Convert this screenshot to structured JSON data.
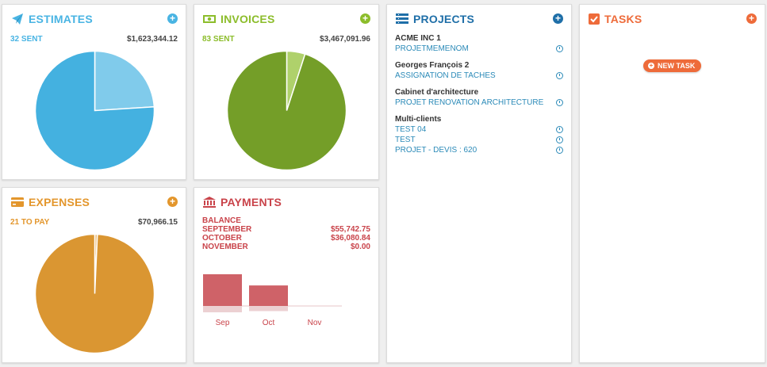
{
  "estimates": {
    "title": "ESTIMATES",
    "count_label": "32 SENT",
    "total": "$1,623,344.12",
    "color": "#49b4e3",
    "pie": [
      0.76,
      0.24
    ]
  },
  "invoices": {
    "title": "INVOICES",
    "count_label": "83 SENT",
    "total": "$3,467,091.96",
    "color": "#8cbd2b",
    "pie": [
      0.95,
      0.05
    ]
  },
  "expenses": {
    "title": "EXPENSES",
    "count_label": "21 TO PAY",
    "total": "$70,966.15",
    "color": "#e3962c",
    "pie": [
      0.993,
      0.007
    ]
  },
  "projects": {
    "title": "PROJECTS",
    "groups": [
      {
        "client": "ACME INC 1",
        "items": [
          "PROJETMEMENOM"
        ]
      },
      {
        "client": "Georges François 2",
        "items": [
          "ASSIGNATION DE TACHES"
        ]
      },
      {
        "client": "Cabinet d'architecture",
        "items": [
          "PROJET RENOVATION ARCHITECTURE"
        ]
      },
      {
        "client": "Multi-clients",
        "items": [
          "TEST 04",
          "TEST",
          "PROJET - DEVIS : 620"
        ]
      }
    ]
  },
  "tasks": {
    "title": "TASKS",
    "new_task_label": "NEW TASK"
  },
  "payments": {
    "title": "PAYMENTS",
    "balance_label": "BALANCE",
    "rows": [
      {
        "label": "SEPTEMBER",
        "value": "$55,742.75"
      },
      {
        "label": "OCTOBER",
        "value": "$36,080.84"
      },
      {
        "label": "NOVEMBER",
        "value": "$0.00"
      }
    ]
  },
  "chart_data": {
    "type": "bar",
    "categories": [
      "Sep",
      "Oct",
      "Nov"
    ],
    "values": [
      55742.75,
      36080.84,
      0.0
    ],
    "title": "",
    "xlabel": "",
    "ylabel": ""
  }
}
